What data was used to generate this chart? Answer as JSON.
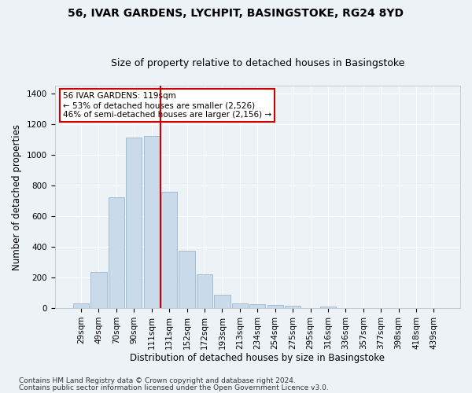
{
  "title": "56, IVAR GARDENS, LYCHPIT, BASINGSTOKE, RG24 8YD",
  "subtitle": "Size of property relative to detached houses in Basingstoke",
  "xlabel": "Distribution of detached houses by size in Basingstoke",
  "ylabel": "Number of detached properties",
  "categories": [
    "29sqm",
    "49sqm",
    "70sqm",
    "90sqm",
    "111sqm",
    "131sqm",
    "152sqm",
    "172sqm",
    "193sqm",
    "213sqm",
    "234sqm",
    "254sqm",
    "275sqm",
    "295sqm",
    "316sqm",
    "336sqm",
    "357sqm",
    "377sqm",
    "398sqm",
    "418sqm",
    "439sqm"
  ],
  "values": [
    30,
    235,
    725,
    1110,
    1120,
    760,
    375,
    220,
    90,
    30,
    25,
    20,
    15,
    0,
    10,
    0,
    0,
    0,
    0,
    0,
    0
  ],
  "bar_color": "#c9daea",
  "bar_edge_color": "#9ab8d0",
  "vline_x_index": 4.5,
  "vline_color": "#cc0000",
  "annotation_text": "56 IVAR GARDENS: 119sqm\n← 53% of detached houses are smaller (2,526)\n46% of semi-detached houses are larger (2,156) →",
  "annotation_box_color": "#ffffff",
  "annotation_box_edge": "#cc0000",
  "ylim": [
    0,
    1450
  ],
  "yticks": [
    0,
    200,
    400,
    600,
    800,
    1000,
    1200,
    1400
  ],
  "footnote1": "Contains HM Land Registry data © Crown copyright and database right 2024.",
  "footnote2": "Contains public sector information licensed under the Open Government Licence v3.0.",
  "bg_color": "#edf2f7",
  "grid_color": "#ffffff",
  "title_fontsize": 10,
  "subtitle_fontsize": 9,
  "axis_label_fontsize": 8.5,
  "tick_fontsize": 7.5,
  "annotation_fontsize": 7.5,
  "footnote_fontsize": 6.5
}
